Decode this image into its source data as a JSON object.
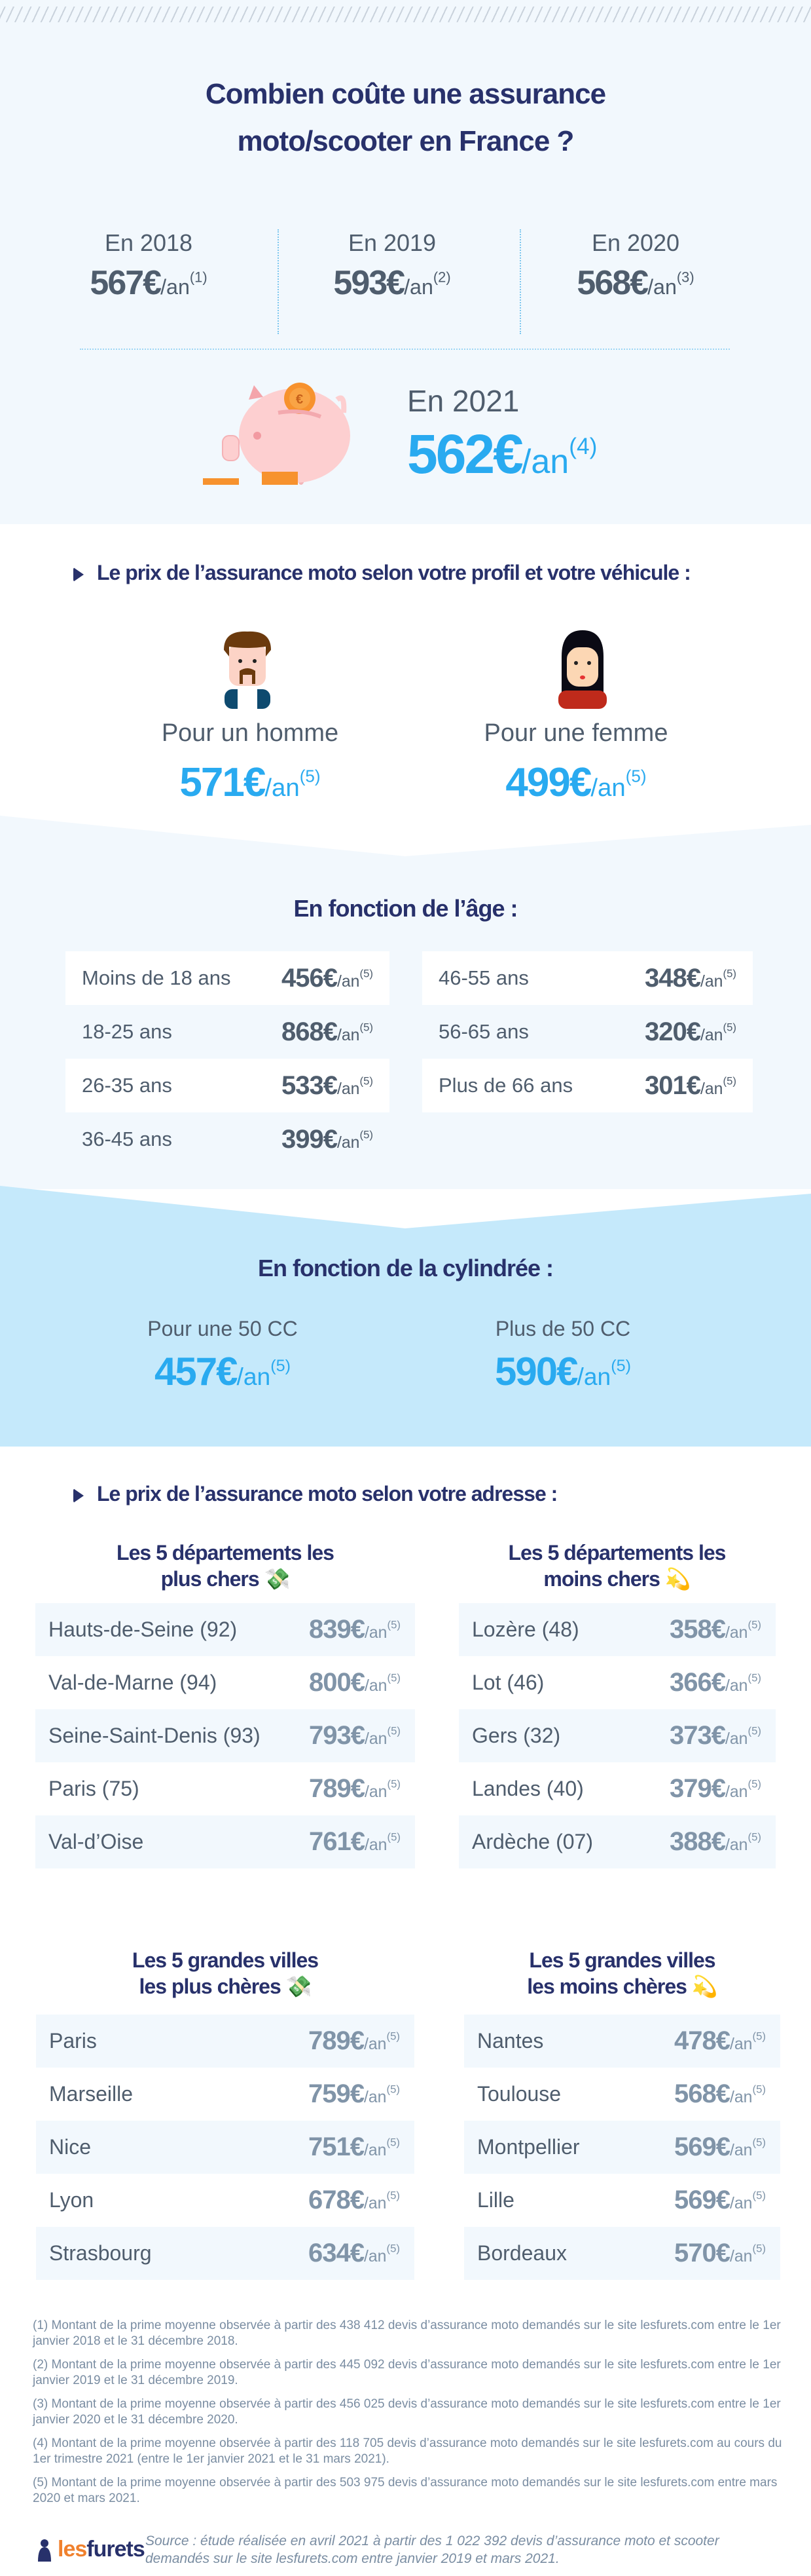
{
  "header": {
    "title_line1": "Combien coûte une assurance",
    "title_line2": "moto/scooter en France ?"
  },
  "years": [
    {
      "label": "En 2018",
      "price": "567€",
      "unit": "/an",
      "note": "(1)"
    },
    {
      "label": "En 2019",
      "price": "593€",
      "unit": "/an",
      "note": "(2)"
    },
    {
      "label": "En 2020",
      "price": "568€",
      "unit": "/an",
      "note": "(3)"
    }
  ],
  "current": {
    "label": "En 2021",
    "price": "562€",
    "unit": "/an",
    "note": "(4)",
    "icon": "piggy-bank-icon"
  },
  "profile": {
    "heading": "Le prix de l’assurance moto selon votre profil et votre véhicule :",
    "man": {
      "label": "Pour un homme",
      "price": "571€",
      "unit": "/an",
      "note": "(5)",
      "icon": "man-avatar-icon"
    },
    "woman": {
      "label": "Pour une femme",
      "price": "499€",
      "unit": "/an",
      "note": "(5)",
      "icon": "woman-avatar-icon"
    }
  },
  "age": {
    "heading": "En fonction de l’âge :",
    "left": [
      {
        "label": "Moins de 18 ans",
        "price": "456€",
        "unit": "/an",
        "note": "(5)"
      },
      {
        "label": "18-25 ans",
        "price": "868€",
        "unit": "/an",
        "note": "(5)"
      },
      {
        "label": "26-35 ans",
        "price": "533€",
        "unit": "/an",
        "note": "(5)"
      },
      {
        "label": "36-45 ans",
        "price": "399€",
        "unit": "/an",
        "note": "(5)"
      }
    ],
    "right": [
      {
        "label": "46-55 ans",
        "price": "348€",
        "unit": "/an",
        "note": "(5)"
      },
      {
        "label": "56-65 ans",
        "price": "320€",
        "unit": "/an",
        "note": "(5)"
      },
      {
        "label": "Plus de 66 ans",
        "price": "301€",
        "unit": "/an",
        "note": "(5)"
      }
    ]
  },
  "cylinder": {
    "heading": "En fonction de la cylindrée :",
    "items": [
      {
        "label": "Pour une 50 CC",
        "price": "457€",
        "unit": "/an",
        "note": "(5)"
      },
      {
        "label": "Plus de 50 CC",
        "price": "590€",
        "unit": "/an",
        "note": "(5)"
      }
    ]
  },
  "address": {
    "heading": "Le prix de l’assurance moto selon votre adresse :",
    "dept_expensive": {
      "title_line1": "Les 5 départements les",
      "title_line2": "plus chers",
      "emoji": "💸",
      "rows": [
        {
          "label": "Hauts-de-Seine (92)",
          "price": "839€",
          "unit": "/an",
          "note": "(5)"
        },
        {
          "label": "Val-de-Marne (94)",
          "price": "800€",
          "unit": "/an",
          "note": "(5)"
        },
        {
          "label": "Seine-Saint-Denis (93)",
          "price": "793€",
          "unit": "/an",
          "note": "(5)"
        },
        {
          "label": "Paris (75)",
          "price": "789€",
          "unit": "/an",
          "note": "(5)"
        },
        {
          "label": "Val-d’Oise",
          "price": "761€",
          "unit": "/an",
          "note": "(5)"
        }
      ]
    },
    "dept_cheap": {
      "title_line1": "Les 5 départements les",
      "title_line2": "moins chers",
      "emoji": "💫",
      "rows": [
        {
          "label": "Lozère (48)",
          "price": "358€",
          "unit": "/an",
          "note": "(5)"
        },
        {
          "label": "Lot (46)",
          "price": "366€",
          "unit": "/an",
          "note": "(5)"
        },
        {
          "label": "Gers (32)",
          "price": "373€",
          "unit": "/an",
          "note": "(5)"
        },
        {
          "label": "Landes (40)",
          "price": "379€",
          "unit": "/an",
          "note": "(5)"
        },
        {
          "label": "Ardèche (07)",
          "price": "388€",
          "unit": "/an",
          "note": "(5)"
        }
      ]
    },
    "city_expensive": {
      "title_line1": "Les 5 grandes villes",
      "title_line2": "les plus chères",
      "emoji": "💸",
      "rows": [
        {
          "label": "Paris",
          "price": "789€",
          "unit": "/an",
          "note": "(5)"
        },
        {
          "label": "Marseille",
          "price": "759€",
          "unit": "/an",
          "note": "(5)"
        },
        {
          "label": "Nice",
          "price": "751€",
          "unit": "/an",
          "note": "(5)"
        },
        {
          "label": "Lyon",
          "price": "678€",
          "unit": "/an",
          "note": "(5)"
        },
        {
          "label": "Strasbourg",
          "price": "634€",
          "unit": "/an",
          "note": "(5)"
        }
      ]
    },
    "city_cheap": {
      "title_line1": "Les 5 grandes villes",
      "title_line2": "les moins chères",
      "emoji": "💫",
      "rows": [
        {
          "label": "Nantes",
          "price": "478€",
          "unit": "/an",
          "note": "(5)"
        },
        {
          "label": "Toulouse",
          "price": "568€",
          "unit": "/an",
          "note": "(5)"
        },
        {
          "label": "Montpellier",
          "price": "569€",
          "unit": "/an",
          "note": "(5)"
        },
        {
          "label": "Lille",
          "price": "569€",
          "unit": "/an",
          "note": "(5)"
        },
        {
          "label": "Bordeaux",
          "price": "570€",
          "unit": "/an",
          "note": "(5)"
        }
      ]
    }
  },
  "footnotes": [
    "(1) Montant de la prime moyenne observée à partir des 438 412 devis d’assurance moto demandés sur le site lesfurets.com entre le 1er janvier 2018 et le 31 décembre 2018.",
    "(2) Montant de la prime moyenne observée à partir des 445 092 devis d’assurance moto demandés sur le site lesfurets.com entre le 1er janvier 2019 et le 31 décembre 2019.",
    "(3) Montant de la prime moyenne observée à partir des 456 025 devis d’assurance moto demandés sur le site lesfurets.com entre le 1er janvier 2020 et le 31 décembre 2020.",
    "(4) Montant de la prime moyenne observée à partir des 118 705 devis d’assurance moto demandés sur le site lesfurets.com au cours du 1er trimestre 2021 (entre le 1er janvier 2021 et le 31 mars 2021).",
    "(5) Montant de la prime moyenne observée à partir des 503 975 devis d’assurance moto demandés sur le site lesfurets.com entre mars 2020 et mars 2021."
  ],
  "footer": {
    "logo_les": "les",
    "logo_furets": "furets",
    "source": "Source : étude réalisée en avril 2021 à partir des 1 022 392 devis d’assurance moto et scooter demandés sur le site lesfurets.com entre janvier 2019 et mars 2021."
  },
  "colors": {
    "navy": "#28316b",
    "blue": "#29aaf0",
    "light_bg": "#f2f8fd",
    "cyl_bg": "#c5e9fb",
    "orange": "#f0812e"
  }
}
